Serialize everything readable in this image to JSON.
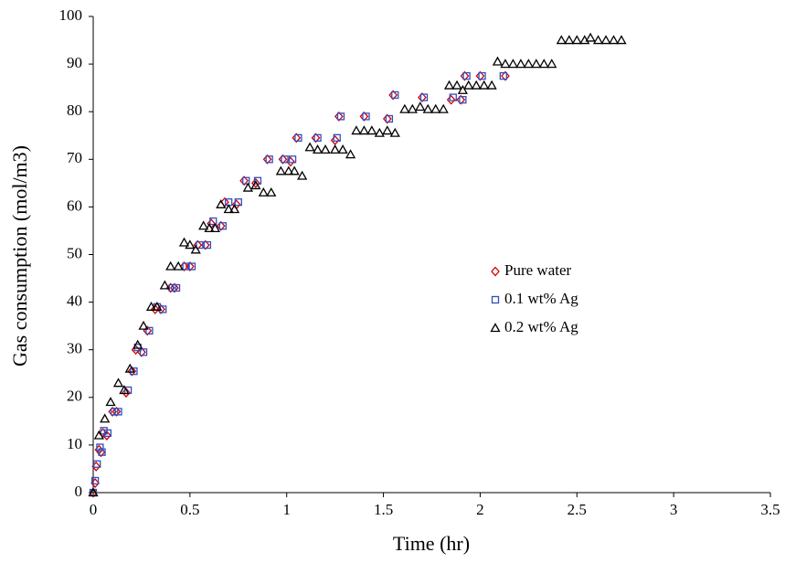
{
  "chart_data": {
    "type": "scatter",
    "x_label": "Time (hr)",
    "y_label": "Gas consumption (mol/m3)",
    "xlim": [
      0,
      3.5
    ],
    "xticks": [
      0,
      0.5,
      1,
      1.5,
      2,
      2.5,
      3,
      3.5
    ],
    "ylim": [
      0,
      100
    ],
    "yticks": [
      0,
      10,
      20,
      30,
      40,
      50,
      60,
      70,
      80,
      90,
      100
    ],
    "grid": false,
    "series": [
      {
        "name": "Pure water",
        "color": "#d40000",
        "marker": "diamond",
        "x": [
          0,
          0.01,
          0.015,
          0.03,
          0.04,
          0.05,
          0.07,
          0.1,
          0.12,
          0.17,
          0.2,
          0.22,
          0.25,
          0.28,
          0.32,
          0.35,
          0.4,
          0.42,
          0.47,
          0.5,
          0.54,
          0.58,
          0.61,
          0.66,
          0.68,
          0.74,
          0.78,
          0.84,
          0.9,
          0.98,
          1.02,
          1.05,
          1.15,
          1.25,
          1.27,
          1.4,
          1.52,
          1.55,
          1.7,
          1.85,
          1.9,
          1.92,
          2.0,
          2.13
        ],
        "values": [
          0,
          2,
          5.5,
          9,
          8.5,
          12.5,
          12,
          17,
          17,
          21,
          25.5,
          30,
          29.5,
          34,
          38.5,
          38.5,
          43,
          43,
          47.5,
          47.5,
          52,
          52,
          56.5,
          56,
          61,
          60.5,
          65.5,
          65,
          70,
          70,
          69.5,
          74.5,
          74.5,
          74,
          79,
          79,
          78.5,
          83.5,
          83,
          82.5,
          82.5,
          87.5,
          87.5,
          87.5
        ]
      },
      {
        "name": "0.1 wt% Ag",
        "color": "#2f4fc0",
        "marker": "square",
        "x": [
          0,
          0.01,
          0.02,
          0.035,
          0.045,
          0.055,
          0.075,
          0.11,
          0.13,
          0.18,
          0.21,
          0.23,
          0.26,
          0.29,
          0.33,
          0.36,
          0.41,
          0.43,
          0.48,
          0.51,
          0.55,
          0.59,
          0.62,
          0.67,
          0.7,
          0.75,
          0.79,
          0.85,
          0.91,
          0.99,
          1.03,
          1.06,
          1.16,
          1.26,
          1.28,
          1.41,
          1.53,
          1.56,
          1.71,
          1.86,
          1.91,
          1.93,
          2.01,
          2.12
        ],
        "values": [
          0,
          2.5,
          6,
          9.5,
          8.5,
          13,
          12.5,
          17,
          17,
          21.5,
          25.5,
          30.5,
          29.5,
          34,
          39,
          38.5,
          43,
          43,
          47.5,
          47.5,
          52,
          52,
          57,
          56,
          61,
          61,
          65.5,
          65.5,
          70,
          70,
          70,
          74.5,
          74.5,
          74.5,
          79,
          79,
          78.5,
          83.5,
          83,
          83,
          82.5,
          87.5,
          87.5,
          87.5
        ]
      },
      {
        "name": "0.2 wt% Ag",
        "color": "#000000",
        "marker": "triangle",
        "x": [
          0,
          0.03,
          0.06,
          0.09,
          0.13,
          0.16,
          0.19,
          0.23,
          0.26,
          0.3,
          0.33,
          0.37,
          0.4,
          0.44,
          0.47,
          0.5,
          0.53,
          0.57,
          0.6,
          0.63,
          0.66,
          0.7,
          0.73,
          0.8,
          0.84,
          0.88,
          0.92,
          0.97,
          1.01,
          1.04,
          1.08,
          1.12,
          1.16,
          1.2,
          1.25,
          1.29,
          1.33,
          1.36,
          1.4,
          1.44,
          1.48,
          1.52,
          1.56,
          1.61,
          1.65,
          1.69,
          1.73,
          1.77,
          1.81,
          1.84,
          1.88,
          1.91,
          1.94,
          1.98,
          2.02,
          2.06,
          2.09,
          2.13,
          2.17,
          2.21,
          2.25,
          2.29,
          2.33,
          2.37,
          2.42,
          2.46,
          2.5,
          2.54,
          2.57,
          2.61,
          2.65,
          2.69,
          2.73
        ],
        "values": [
          0,
          12,
          15.5,
          19,
          23,
          21.5,
          26,
          31,
          35,
          39,
          39,
          43.5,
          47.5,
          47.5,
          52.5,
          52,
          51,
          56,
          55.5,
          55.5,
          60.5,
          59.5,
          59.5,
          64,
          64.5,
          63,
          63,
          67.5,
          67.5,
          67.5,
          66.5,
          72.5,
          72,
          72,
          72,
          72,
          71,
          76,
          76,
          76,
          75.5,
          76,
          75.5,
          80.5,
          80.5,
          81,
          80.5,
          80.5,
          80.5,
          85.5,
          85.5,
          84.5,
          85.5,
          85.5,
          85.5,
          85.5,
          90.5,
          90,
          90,
          90,
          90,
          90,
          90,
          90,
          95,
          95,
          95,
          95,
          95.5,
          95,
          95,
          95,
          95
        ]
      }
    ]
  }
}
